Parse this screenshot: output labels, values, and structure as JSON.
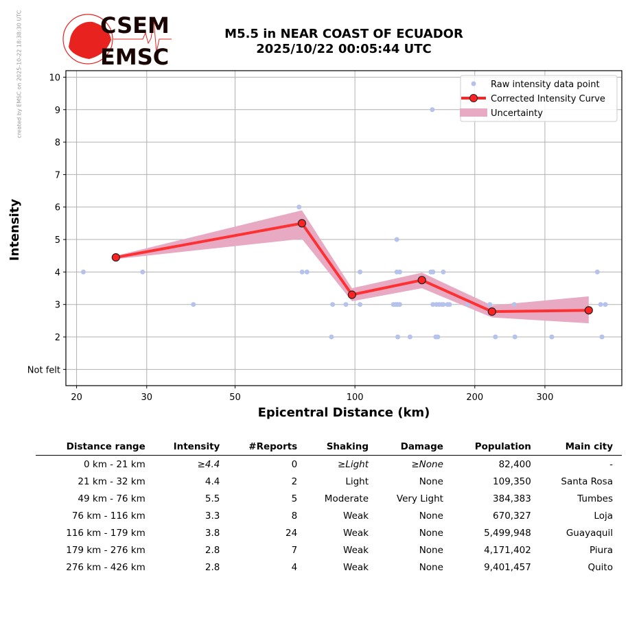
{
  "credit": "created by EMSC on 2025-10-22 18:38:30 UTC",
  "logo": {
    "top": "CSEM",
    "bottom": "EMSC"
  },
  "title_line1": "M5.5 in NEAR COAST OF ECUADOR",
  "title_line2": "2025/10/22 00:05:44 UTC",
  "colors": {
    "raw": "#b4c2ec",
    "curve": "#ff2222",
    "band": "#e8a9c3",
    "logo": "#e8231f"
  },
  "chart_data": {
    "type": "line",
    "xlabel": "Epicentral Distance (km)",
    "ylabel": "Intensity",
    "xscale": "log",
    "xlim": [
      18.8,
      468
    ],
    "ylim": [
      0.5,
      10.2
    ],
    "xticks": [
      20,
      30,
      50,
      100,
      200,
      300
    ],
    "xtick_labels": [
      "20",
      "30",
      "50",
      "100",
      "200",
      "300"
    ],
    "yticks": [
      1,
      2,
      3,
      4,
      5,
      6,
      7,
      8,
      9,
      10
    ],
    "ytick_labels": [
      "Not felt",
      "2",
      "3",
      "4",
      "5",
      "6",
      "7",
      "8",
      "9",
      "10"
    ],
    "grid": true,
    "legend": {
      "placement": "top-right",
      "entries": [
        "Raw intensity data point",
        "Corrected Intensity Curve",
        "Uncertainty"
      ]
    },
    "raw_points": [
      [
        20.8,
        4
      ],
      [
        29.3,
        4
      ],
      [
        39.3,
        3
      ],
      [
        72.4,
        6
      ],
      [
        73.7,
        4
      ],
      [
        75.8,
        4
      ],
      [
        87.3,
        2
      ],
      [
        87.9,
        3
      ],
      [
        94.9,
        3
      ],
      [
        103.0,
        4
      ],
      [
        103.0,
        3
      ],
      [
        127.4,
        5
      ],
      [
        124.9,
        3
      ],
      [
        126.3,
        3
      ],
      [
        127.4,
        3
      ],
      [
        128.1,
        3
      ],
      [
        129.6,
        3
      ],
      [
        127.4,
        4
      ],
      [
        129.6,
        4
      ],
      [
        128.1,
        2
      ],
      [
        137.5,
        2
      ],
      [
        155.2,
        4
      ],
      [
        157.0,
        4
      ],
      [
        166.7,
        4
      ],
      [
        156.4,
        9
      ],
      [
        157.0,
        3
      ],
      [
        160.2,
        3
      ],
      [
        162.8,
        3
      ],
      [
        165.4,
        3
      ],
      [
        166.7,
        3
      ],
      [
        170.8,
        3
      ],
      [
        172.8,
        3
      ],
      [
        159.6,
        2
      ],
      [
        161.5,
        2
      ],
      [
        191.8,
        3
      ],
      [
        218.2,
        3
      ],
      [
        225.3,
        2
      ],
      [
        251.2,
        3
      ],
      [
        252.2,
        2
      ],
      [
        312.1,
        2
      ],
      [
        406.1,
        4
      ],
      [
        414.0,
        3
      ],
      [
        425.5,
        3
      ],
      [
        417.2,
        2
      ]
    ],
    "curve": {
      "x": [
        25.1,
        73.6,
        98.3,
        147.3,
        220.9,
        386.5
      ],
      "y": [
        4.45,
        5.5,
        3.3,
        3.75,
        2.78,
        2.82
      ]
    },
    "uncertainty": {
      "upper": [
        4.5,
        5.9,
        3.5,
        3.98,
        2.97,
        3.25
      ],
      "lower": [
        4.4,
        5.02,
        3.1,
        3.5,
        2.6,
        2.42
      ]
    }
  },
  "table": {
    "headers": [
      "Distance range",
      "Intensity",
      "#Reports",
      "Shaking",
      "Damage",
      "Population",
      "Main city"
    ],
    "rows": [
      [
        "0 km -   21 km",
        "≥4.4",
        "0",
        "≥Light",
        "≥None",
        "82,400",
        "-"
      ],
      [
        "21 km -   32 km",
        "4.4",
        "2",
        "Light",
        "None",
        "109,350",
        "Santa Rosa"
      ],
      [
        "49 km -   76 km",
        "5.5",
        "5",
        "Moderate",
        "Very Light",
        "384,383",
        "Tumbes"
      ],
      [
        "76 km -  116 km",
        "3.3",
        "8",
        "Weak",
        "None",
        "670,327",
        "Loja"
      ],
      [
        "116 km -  179 km",
        "3.8",
        "24",
        "Weak",
        "None",
        "5,499,948",
        "Guayaquil"
      ],
      [
        "179 km -  276 km",
        "2.8",
        "7",
        "Weak",
        "None",
        "4,171,402",
        "Piura"
      ],
      [
        "276 km -  426 km",
        "2.8",
        "4",
        "Weak",
        "None",
        "9,401,457",
        "Quito"
      ]
    ]
  }
}
